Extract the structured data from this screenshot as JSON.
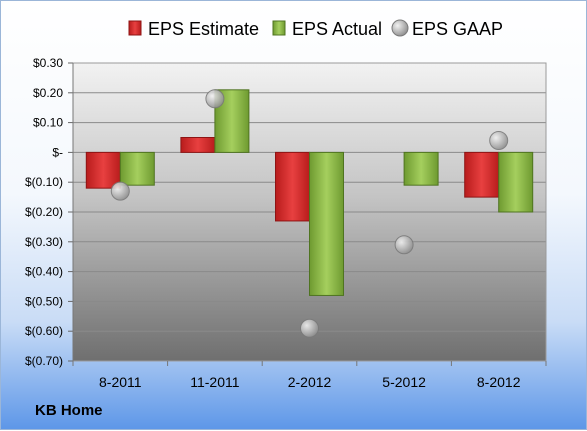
{
  "company": "KB Home",
  "colors": {
    "estimate": "#d42a2a",
    "actual": "#8db848",
    "gaap": "#b8b8b8"
  },
  "chart_data": {
    "type": "bar",
    "title": "",
    "xlabel": "",
    "ylabel": "",
    "categories": [
      "8-2011",
      "11-2011",
      "2-2012",
      "5-2012",
      "8-2012"
    ],
    "series": [
      {
        "name": "EPS Estimate",
        "kind": "bar",
        "values": [
          -0.12,
          0.05,
          -0.23,
          null,
          -0.15
        ]
      },
      {
        "name": "EPS Actual",
        "kind": "bar",
        "values": [
          -0.11,
          0.21,
          -0.48,
          -0.11,
          -0.2
        ]
      },
      {
        "name": "EPS GAAP",
        "kind": "point",
        "values": [
          -0.13,
          0.18,
          -0.59,
          -0.31,
          0.04
        ]
      }
    ],
    "ylim": [
      -0.7,
      0.3
    ],
    "yticks": [
      0.3,
      0.2,
      0.1,
      0.0,
      -0.1,
      -0.2,
      -0.3,
      -0.4,
      -0.5,
      -0.6,
      -0.7
    ],
    "ytick_labels": [
      "$0.30",
      "$0.20",
      "$0.10",
      "$-",
      "$(0.10)",
      "$(0.20)",
      "$(0.30)",
      "$(0.40)",
      "$(0.50)",
      "$(0.60)",
      "$(0.70)"
    ],
    "legend_position": "top",
    "grid": true
  }
}
